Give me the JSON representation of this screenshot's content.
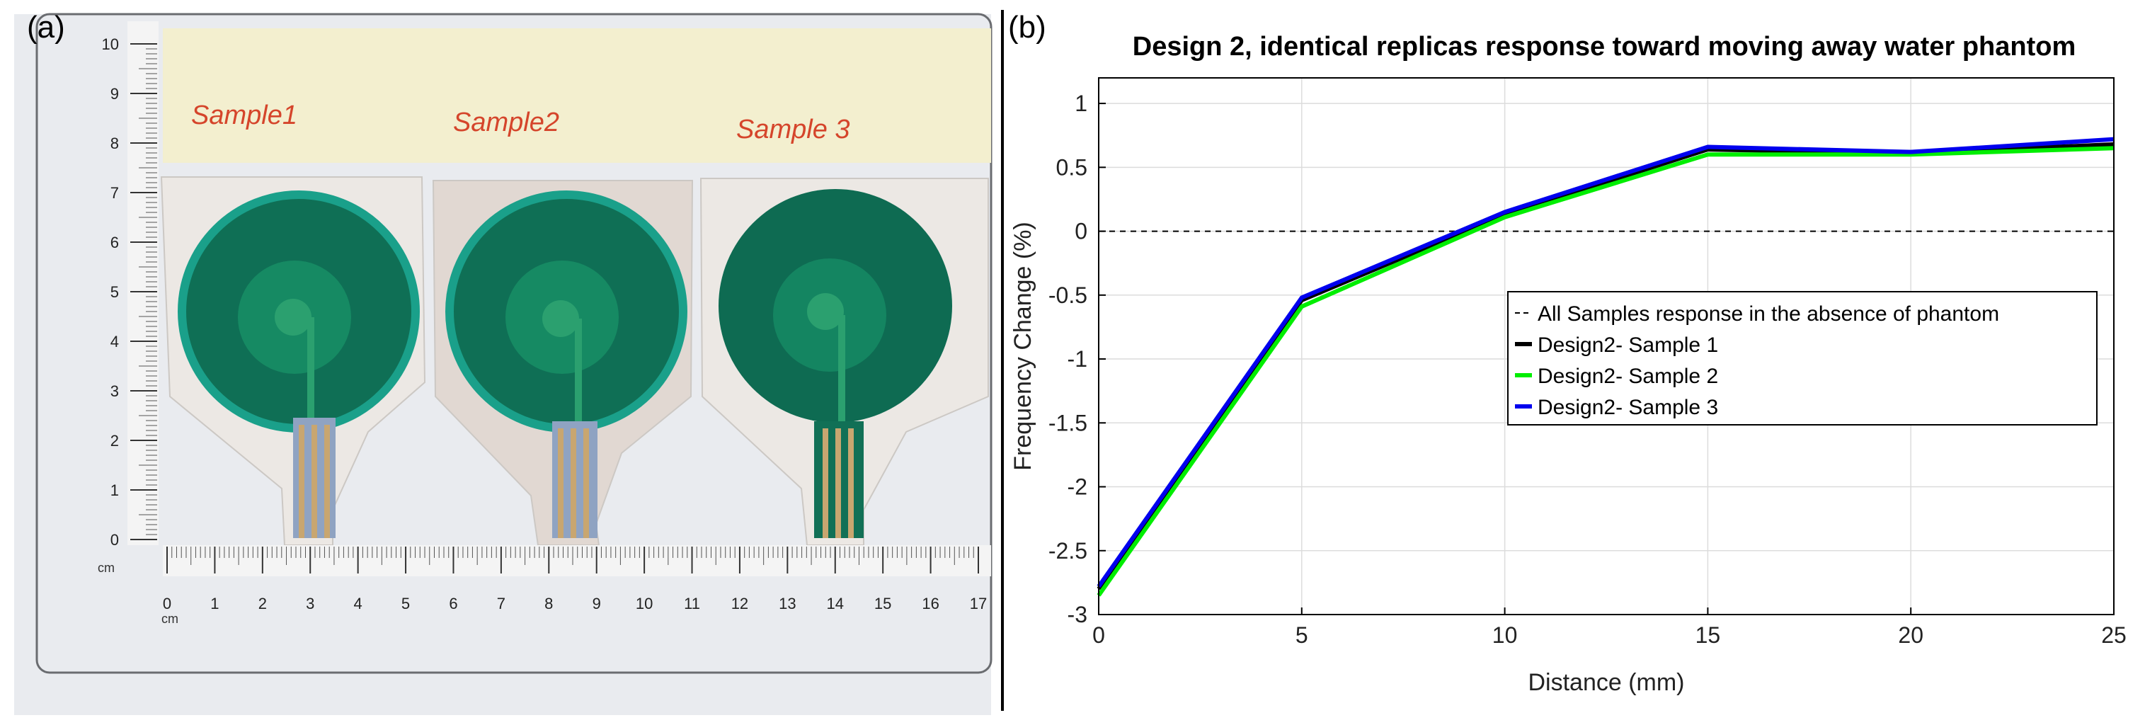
{
  "figure": {
    "panel_a_label": "(a)",
    "panel_b_label": "(b)"
  },
  "photo": {
    "description_labels": [
      "Sample1",
      "Sample2",
      "Sample 3"
    ],
    "vertical_ruler_ticks": [
      "10",
      "9",
      "8",
      "7",
      "6",
      "5",
      "4",
      "3",
      "2",
      "1",
      "0"
    ],
    "vertical_ruler_unit": "cm",
    "horizontal_ruler_ticks": [
      "0",
      "1",
      "2",
      "3",
      "4",
      "5",
      "6",
      "7",
      "8",
      "9",
      "10",
      "11",
      "12",
      "13",
      "14",
      "15",
      "16",
      "17"
    ],
    "horizontal_ruler_unit": "cm",
    "colors": {
      "tape": "#f3efcf",
      "sensor_dark": "#0f6f55",
      "sensor_mid": "#168a63",
      "sensor_light": "#2ba06f",
      "substrate": "#ece8e4",
      "background": "#e9ebef"
    }
  },
  "chart_data": {
    "type": "line",
    "title": "Design 2, identical replicas response toward moving away water phantom",
    "xlabel": "Distance (mm)",
    "ylabel": "Frequency Change (%)",
    "xlim": [
      0,
      25
    ],
    "ylim": [
      -3,
      1.2
    ],
    "xticks": [
      0,
      5,
      10,
      15,
      20,
      25
    ],
    "yticks": [
      1,
      0.5,
      0,
      -0.5,
      -1,
      -1.5,
      -2,
      -2.5,
      -3
    ],
    "xtick_labels": [
      "0",
      "5",
      "10",
      "15",
      "20",
      "25"
    ],
    "ytick_labels": [
      "1",
      "0.5",
      "0",
      "-0.5",
      "-1",
      "-1.5",
      "-2",
      "-2.5",
      "-3"
    ],
    "grid": true,
    "legend_position": "center-right",
    "x": [
      0,
      5,
      10,
      15,
      20,
      25
    ],
    "reference": {
      "name": "All Samples response in the absence of phantom",
      "value": 0,
      "style": "dashed",
      "color": "#000000"
    },
    "series": [
      {
        "name": "Design2- Sample 1",
        "color": "#000000",
        "values": [
          -2.8,
          -0.54,
          0.13,
          0.64,
          0.61,
          0.68
        ]
      },
      {
        "name": "Design2- Sample 2",
        "color": "#00ee00",
        "values": [
          -2.85,
          -0.59,
          0.11,
          0.6,
          0.6,
          0.65
        ]
      },
      {
        "name": "Design2- Sample 3",
        "color": "#0000ee",
        "values": [
          -2.78,
          -0.52,
          0.15,
          0.66,
          0.62,
          0.72
        ]
      }
    ]
  }
}
